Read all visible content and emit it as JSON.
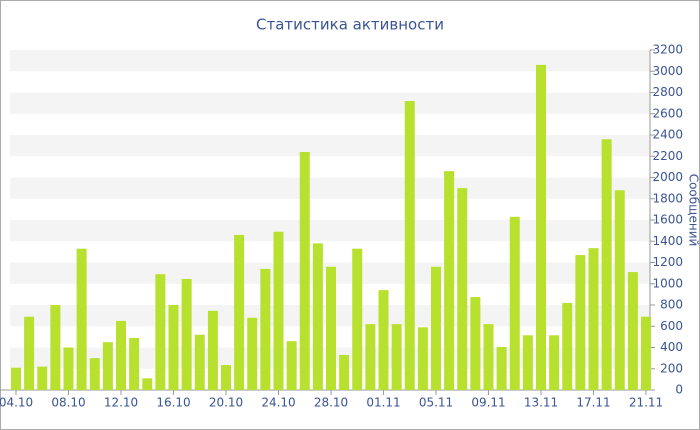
{
  "chart_data": {
    "type": "bar",
    "title": "Статистика активности",
    "y_axis_label": "Сообщений",
    "categories": [
      "04.10",
      null,
      null,
      null,
      "08.10",
      null,
      null,
      null,
      "12.10",
      null,
      null,
      null,
      "16.10",
      null,
      null,
      null,
      "20.10",
      null,
      null,
      null,
      "24.10",
      null,
      null,
      null,
      "28.10",
      null,
      null,
      null,
      "01.11",
      null,
      null,
      null,
      "05.11",
      null,
      null,
      null,
      "09.11",
      null,
      null,
      null,
      "13.11",
      null,
      null,
      null,
      "17.11",
      null,
      null,
      null,
      "21.11"
    ],
    "values": [
      210,
      690,
      220,
      800,
      400,
      1330,
      300,
      450,
      650,
      490,
      110,
      1090,
      800,
      1045,
      520,
      745,
      235,
      1460,
      680,
      1140,
      1490,
      460,
      2240,
      1380,
      1160,
      330,
      1330,
      620,
      940,
      620,
      2720,
      590,
      1160,
      2060,
      1900,
      875,
      620,
      405,
      1630,
      515,
      3060,
      515,
      820,
      1270,
      1335,
      2360,
      1880,
      1110,
      690
    ],
    "color": "#b8e02e",
    "ylim": [
      0,
      3200
    ],
    "yticks": [
      0,
      200,
      400,
      600,
      800,
      1000,
      1200,
      1400,
      1600,
      1800,
      2000,
      2200,
      2400,
      2600,
      2800,
      3000,
      3200
    ],
    "grid": true
  }
}
